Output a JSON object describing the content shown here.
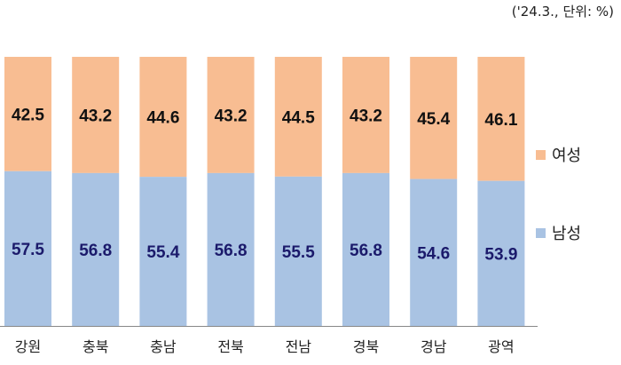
{
  "unit_note": "('24.3., 단위: %)",
  "colors": {
    "female": "#F8BD92",
    "male": "#A9C3E3",
    "female_label": "#111111",
    "male_label": "#1B1A6B",
    "axis": "#888888",
    "text": "#222222"
  },
  "chart_data": {
    "type": "bar",
    "stacked": true,
    "percent_stacked": true,
    "categories": [
      "강원",
      "충북",
      "충남",
      "전북",
      "전남",
      "경북",
      "경남",
      "광역"
    ],
    "series": [
      {
        "name": "남성",
        "values": [
          57.5,
          56.8,
          55.4,
          56.8,
          55.5,
          56.8,
          54.6,
          53.9
        ]
      },
      {
        "name": "여성",
        "values": [
          42.5,
          43.2,
          44.6,
          43.2,
          44.5,
          43.2,
          45.4,
          46.1
        ]
      }
    ],
    "ylim": [
      0,
      100
    ],
    "legend_position": "right",
    "grid": false
  }
}
